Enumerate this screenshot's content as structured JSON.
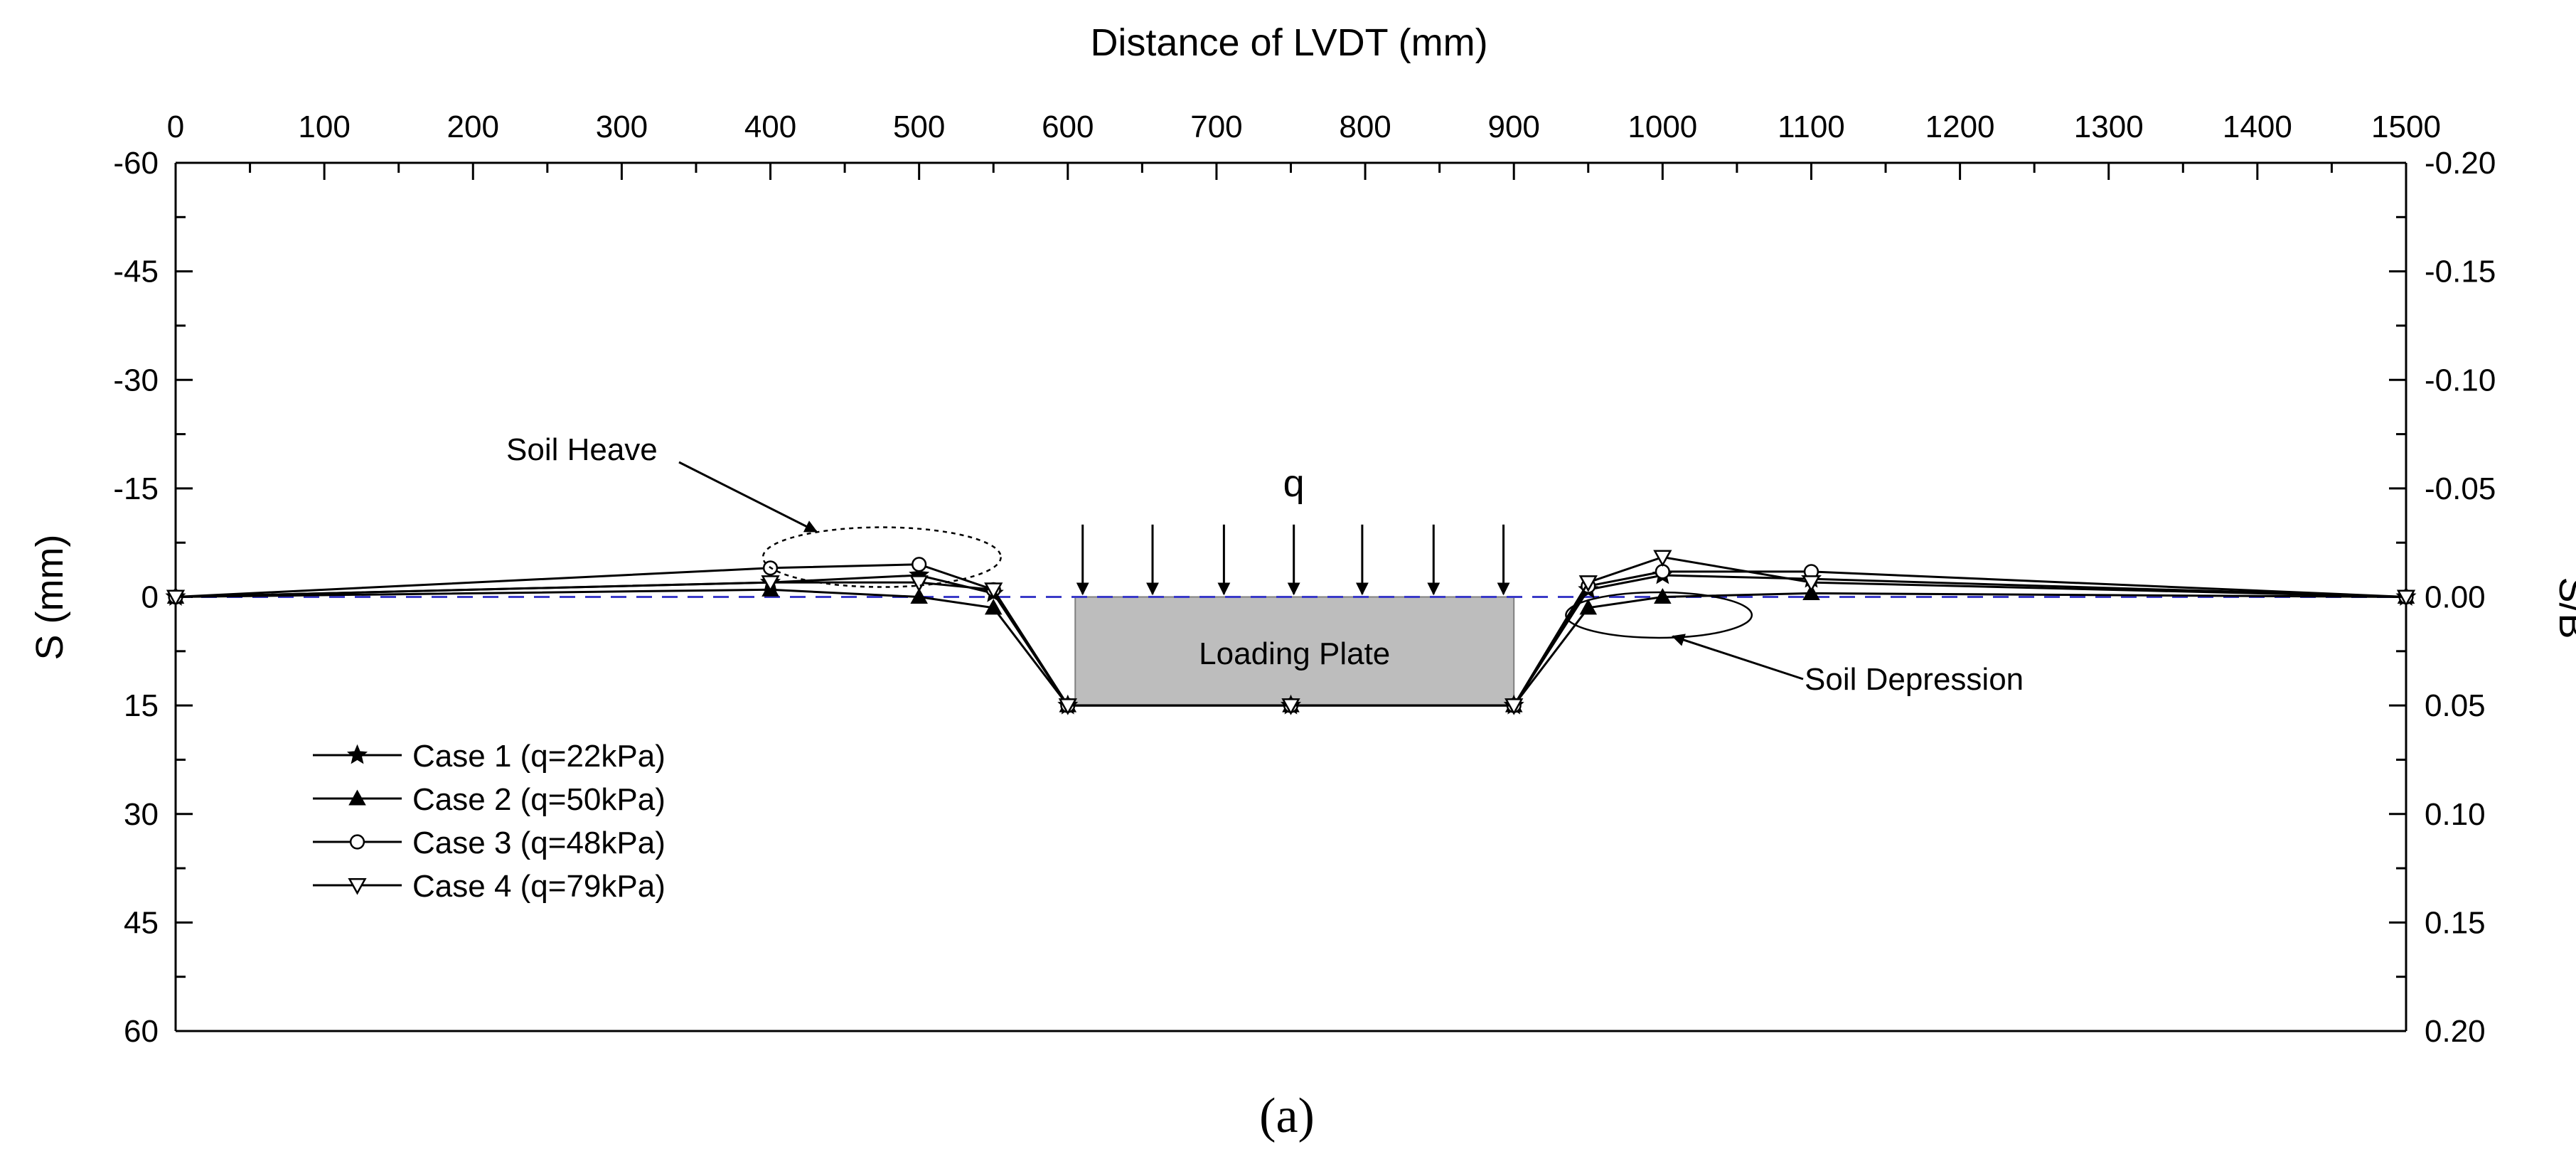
{
  "chart_data": {
    "type": "line",
    "title": "",
    "xlabel": "Distance of LVDT (mm)",
    "ylabel": "S (mm)",
    "y2label": "S/B",
    "xlim": [
      0,
      1500
    ],
    "ylim": [
      -60,
      60
    ],
    "y2lim": [
      -0.2,
      0.2
    ],
    "y_inverted": true,
    "x_ticks": [
      "0",
      "100",
      "200",
      "300",
      "400",
      "500",
      "600",
      "700",
      "800",
      "900",
      "1000",
      "1100",
      "1200",
      "1300",
      "1400",
      "1500"
    ],
    "y_ticks": [
      "-60",
      "-45",
      "-30",
      "-15",
      "0",
      "15",
      "30",
      "45",
      "60"
    ],
    "y2_ticks": [
      "-0.20",
      "-0.15",
      "-0.10",
      "-0.05",
      "0.00",
      "0.05",
      "0.10",
      "0.15",
      "0.20"
    ],
    "series": [
      {
        "name": "Case 1 (q=22kPa)",
        "marker": "star",
        "x": [
          0,
          400,
          500,
          550,
          600,
          750,
          900,
          950,
          1000,
          1100,
          1500
        ],
        "y": [
          0,
          -2,
          -3,
          -0.5,
          15,
          15,
          15,
          -1,
          -3,
          -2.5,
          0
        ]
      },
      {
        "name": "Case 2 (q=50kPa)",
        "marker": "triangle-up",
        "x": [
          0,
          400,
          500,
          550,
          600,
          750,
          900,
          950,
          1000,
          1100,
          1500
        ],
        "y": [
          0,
          -1,
          0,
          1.5,
          15,
          15,
          15,
          1.5,
          0,
          -0.5,
          0
        ]
      },
      {
        "name": "Case 3 (q=48kPa)",
        "marker": "circle",
        "x": [
          0,
          400,
          500,
          550,
          600,
          750,
          900,
          950,
          1000,
          1100,
          1500
        ],
        "y": [
          0,
          -4,
          -4.5,
          -1,
          15,
          15,
          15,
          -1.5,
          -3.5,
          -3.5,
          0
        ]
      },
      {
        "name": "Case 4 (q=79kPa)",
        "marker": "triangle-down",
        "x": [
          0,
          400,
          500,
          550,
          600,
          750,
          900,
          950,
          1000,
          1100,
          1500
        ],
        "y": [
          0,
          -2,
          -2,
          -1,
          15,
          15,
          15,
          -2,
          -5.5,
          -2,
          0
        ]
      }
    ],
    "reference_line": {
      "y": 0,
      "style": "dashed",
      "color": "#3a3ac8"
    },
    "loading_plate": {
      "label": "Loading Plate",
      "x_range": [
        605,
        900
      ],
      "y_range": [
        0,
        15
      ],
      "color": "#bdbdbd"
    },
    "load_arrows": {
      "label": "q",
      "x": [
        610,
        657,
        705,
        752,
        798,
        846,
        893
      ],
      "from_y": -10,
      "to_y": 0
    },
    "annotations": [
      {
        "text": "Soil Heave",
        "target": "ellipse-heave",
        "x_range": [
          395,
          555
        ],
        "y_center": -5.5
      },
      {
        "text": "Soil Depression",
        "target": "ellipse-depression",
        "x_range": [
          935,
          1060
        ],
        "y_center": 2.5
      }
    ],
    "legend_position": "bottom-left",
    "caption": "(a)"
  }
}
